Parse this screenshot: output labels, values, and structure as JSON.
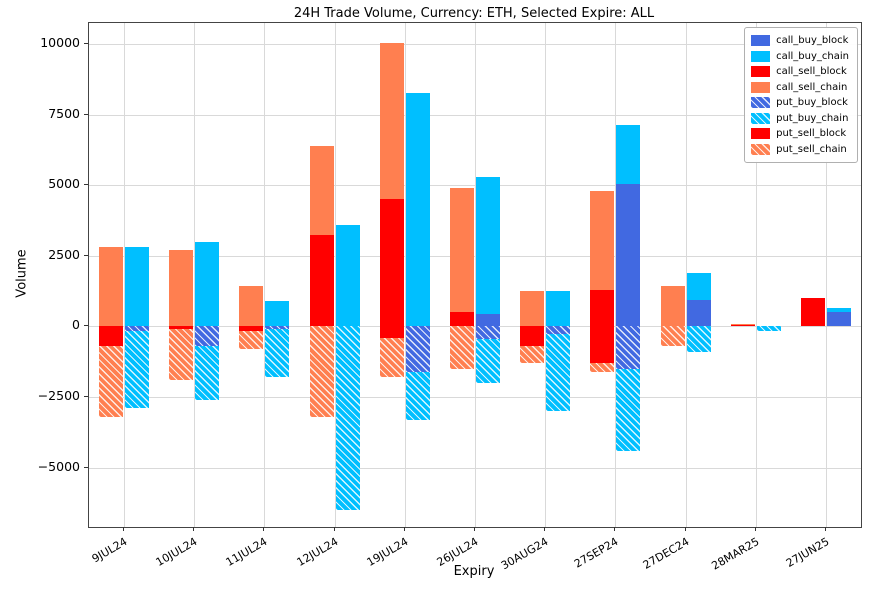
{
  "chart_data": {
    "type": "bar",
    "title": "24H Trade Volume, Currency: ETH, Selected Expire: ALL",
    "xlabel": "Expiry",
    "ylabel": "Volume",
    "categories": [
      "9JUL24",
      "10JUL24",
      "11JUL24",
      "12JUL24",
      "19JUL24",
      "26JUL24",
      "30AUG24",
      "27SEP24",
      "27DEC24",
      "28MAR25",
      "27JUN25"
    ],
    "yticks": [
      -5000,
      -2500,
      0,
      2500,
      5000,
      7500,
      10000
    ],
    "ylim": [
      -7100,
      10745
    ],
    "grid": true,
    "legend_position": "upper right",
    "series": [
      {
        "name": "call_buy_block",
        "color": "#4169e1",
        "hatch": false,
        "bar": "buy",
        "values": [
          0,
          0,
          0,
          0,
          0,
          450,
          0,
          5050,
          950,
          0,
          500
        ]
      },
      {
        "name": "call_buy_chain",
        "color": "#00bfff",
        "hatch": false,
        "bar": "buy",
        "values": [
          2800,
          3000,
          900,
          3600,
          8250,
          4850,
          1250,
          2100,
          950,
          0,
          150
        ]
      },
      {
        "name": "call_sell_block",
        "color": "#ff0000",
        "hatch": false,
        "bar": "sell",
        "values": [
          0,
          0,
          0,
          3250,
          4500,
          500,
          0,
          1300,
          0,
          50,
          1000
        ]
      },
      {
        "name": "call_sell_chain",
        "color": "#ff7f50",
        "hatch": false,
        "bar": "sell",
        "values": [
          2800,
          2700,
          1450,
          3150,
          5550,
          4400,
          1250,
          3500,
          1450,
          50,
          0
        ]
      },
      {
        "name": "put_buy_block",
        "color": "#4169e1",
        "hatch": true,
        "bar": "buy",
        "values": [
          -150,
          -700,
          -100,
          0,
          -1600,
          -450,
          -250,
          -1500,
          0,
          0,
          0
        ]
      },
      {
        "name": "put_buy_chain",
        "color": "#00bfff",
        "hatch": true,
        "bar": "buy",
        "values": [
          -2750,
          -1900,
          -1700,
          -6500,
          -1700,
          -1550,
          -2750,
          -2900,
          -900,
          -150,
          0
        ]
      },
      {
        "name": "put_sell_block",
        "color": "#ff0000",
        "hatch": false,
        "bar": "sell",
        "values": [
          -700,
          -100,
          -150,
          0,
          -400,
          0,
          -700,
          -1300,
          0,
          0,
          0
        ]
      },
      {
        "name": "put_sell_chain",
        "color": "#ff7f50",
        "hatch": true,
        "bar": "sell",
        "values": [
          -2500,
          -1800,
          -650,
          -3200,
          -1400,
          -1500,
          -600,
          -300,
          -700,
          0,
          0
        ]
      }
    ]
  }
}
